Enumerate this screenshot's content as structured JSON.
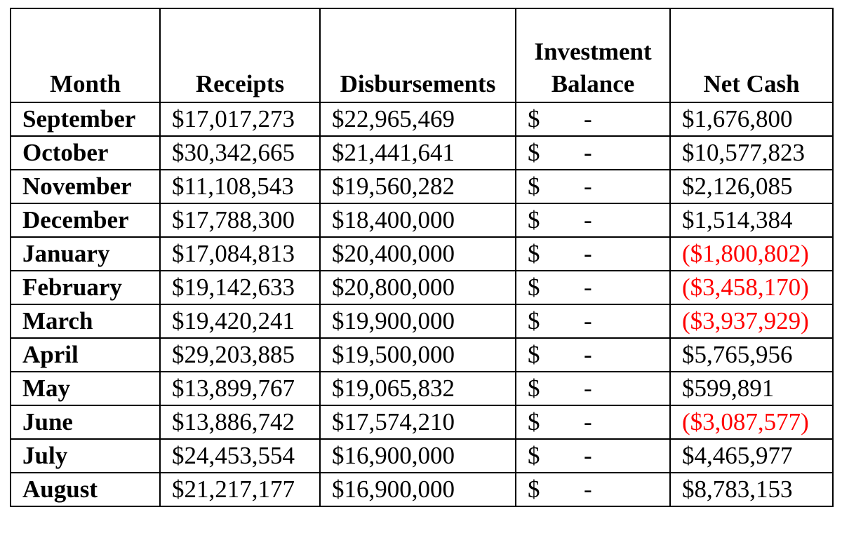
{
  "table": {
    "headers": {
      "month": "Month",
      "receipts": "Receipts",
      "disbursements": "Disbursements",
      "investment_line1": "Investment",
      "investment_line2": "Balance",
      "net_cash": "Net Cash"
    },
    "rows": [
      {
        "month": "September",
        "receipts": "$17,017,273",
        "disbursements": "$22,965,469",
        "investment_symbol": "$",
        "investment_value": "-",
        "net_cash": "$1,676,800",
        "negative": false
      },
      {
        "month": "October",
        "receipts": "$30,342,665",
        "disbursements": "$21,441,641",
        "investment_symbol": "$",
        "investment_value": "-",
        "net_cash": "$10,577,823",
        "negative": false
      },
      {
        "month": "November",
        "receipts": "$11,108,543",
        "disbursements": "$19,560,282",
        "investment_symbol": "$",
        "investment_value": "-",
        "net_cash": "$2,126,085",
        "negative": false
      },
      {
        "month": "December",
        "receipts": "$17,788,300",
        "disbursements": "$18,400,000",
        "investment_symbol": "$",
        "investment_value": "-",
        "net_cash": "$1,514,384",
        "negative": false
      },
      {
        "month": "January",
        "receipts": "$17,084,813",
        "disbursements": "$20,400,000",
        "investment_symbol": "$",
        "investment_value": "-",
        "net_cash": "($1,800,802)",
        "negative": true
      },
      {
        "month": "February",
        "receipts": "$19,142,633",
        "disbursements": "$20,800,000",
        "investment_symbol": "$",
        "investment_value": "-",
        "net_cash": "($3,458,170)",
        "negative": true
      },
      {
        "month": "March",
        "receipts": "$19,420,241",
        "disbursements": "$19,900,000",
        "investment_symbol": "$",
        "investment_value": "-",
        "net_cash": "($3,937,929)",
        "negative": true
      },
      {
        "month": "April",
        "receipts": "$29,203,885",
        "disbursements": "$19,500,000",
        "investment_symbol": "$",
        "investment_value": "-",
        "net_cash": "$5,765,956",
        "negative": false
      },
      {
        "month": "May",
        "receipts": "$13,899,767",
        "disbursements": "$19,065,832",
        "investment_symbol": "$",
        "investment_value": "-",
        "net_cash": "$599,891",
        "negative": false
      },
      {
        "month": "June",
        "receipts": "$13,886,742",
        "disbursements": "$17,574,210",
        "investment_symbol": "$",
        "investment_value": "-",
        "net_cash": "($3,087,577)",
        "negative": true
      },
      {
        "month": "July",
        "receipts": "$24,453,554",
        "disbursements": "$16,900,000",
        "investment_symbol": "$",
        "investment_value": "-",
        "net_cash": "$4,465,977",
        "negative": false
      },
      {
        "month": "August",
        "receipts": "$21,217,177",
        "disbursements": "$16,900,000",
        "investment_symbol": "$",
        "investment_value": "-",
        "net_cash": "$8,783,153",
        "negative": false
      }
    ]
  },
  "colors": {
    "negative": "#ff0000",
    "text": "#000000",
    "border": "#000000",
    "background": "#ffffff"
  }
}
